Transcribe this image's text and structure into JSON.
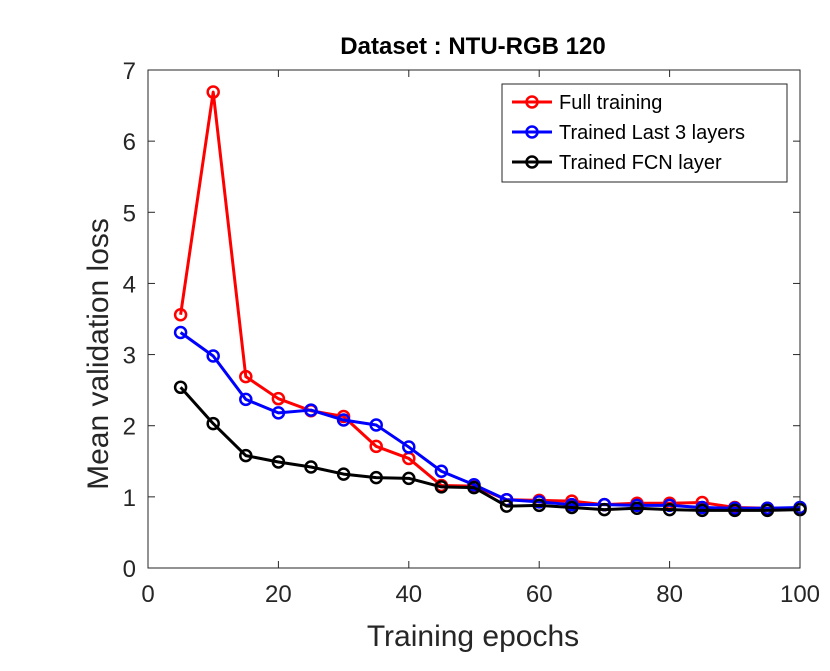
{
  "chart_data": {
    "type": "line",
    "title": "Dataset : NTU-RGB 120",
    "xlabel": "Training epochs",
    "ylabel": "Mean validation loss",
    "xlim": [
      0,
      100
    ],
    "ylim": [
      0,
      7
    ],
    "xticks": [
      0,
      20,
      40,
      60,
      80,
      100
    ],
    "yticks": [
      0,
      1,
      2,
      3,
      4,
      5,
      6,
      7
    ],
    "legend_position": "top-right",
    "x": [
      5,
      10,
      15,
      20,
      25,
      30,
      35,
      40,
      45,
      50,
      55,
      60,
      65,
      70,
      75,
      80,
      85,
      90,
      95,
      100
    ],
    "series": [
      {
        "name": "Full training",
        "color": "#ff0000",
        "values": [
          3.56,
          6.69,
          2.69,
          2.38,
          2.21,
          2.13,
          1.71,
          1.54,
          1.16,
          1.15,
          0.96,
          0.95,
          0.94,
          0.89,
          0.91,
          0.91,
          0.92,
          0.85,
          0.84,
          0.84
        ]
      },
      {
        "name": "Trained Last 3 layers",
        "color": "#0000ff",
        "values": [
          3.31,
          2.98,
          2.37,
          2.18,
          2.22,
          2.08,
          2.01,
          1.7,
          1.36,
          1.17,
          0.96,
          0.93,
          0.89,
          0.89,
          0.88,
          0.88,
          0.85,
          0.84,
          0.84,
          0.85
        ]
      },
      {
        "name": "Trained FCN layer",
        "color": "#000000",
        "values": [
          2.54,
          2.03,
          1.58,
          1.49,
          1.42,
          1.32,
          1.27,
          1.26,
          1.14,
          1.13,
          0.87,
          0.88,
          0.85,
          0.82,
          0.84,
          0.82,
          0.81,
          0.81,
          0.81,
          0.82
        ]
      }
    ]
  }
}
